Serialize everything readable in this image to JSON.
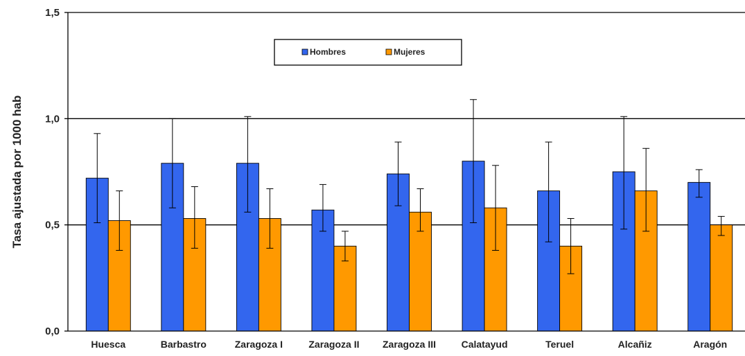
{
  "chart_data": {
    "type": "bar",
    "title": "",
    "xlabel": "",
    "ylabel": "Tasa ajustada por 1000 hab",
    "ylim": [
      0,
      1.5
    ],
    "yticks": [
      "0,0",
      "0,5",
      "1,0",
      "1,5"
    ],
    "categories": [
      "Huesca",
      "Barbastro",
      "Zaragoza I",
      "Zaragoza II",
      "Zaragoza III",
      "Calatayud",
      "Teruel",
      "Alcañiz",
      "Aragón"
    ],
    "series": [
      {
        "name": "Hombres",
        "color": "#3366ee",
        "values": [
          0.72,
          0.79,
          0.79,
          0.57,
          0.74,
          0.8,
          0.66,
          0.75,
          0.7
        ],
        "err_low": [
          0.51,
          0.58,
          0.56,
          0.47,
          0.59,
          0.51,
          0.42,
          0.48,
          0.63
        ],
        "err_high": [
          0.93,
          1.0,
          1.01,
          0.69,
          0.89,
          1.09,
          0.89,
          1.01,
          0.76
        ]
      },
      {
        "name": "Mujeres",
        "color": "#ff9900",
        "values": [
          0.52,
          0.53,
          0.53,
          0.4,
          0.56,
          0.58,
          0.4,
          0.66,
          0.5
        ],
        "err_low": [
          0.38,
          0.39,
          0.39,
          0.33,
          0.47,
          0.38,
          0.27,
          0.47,
          0.45
        ],
        "err_high": [
          0.66,
          0.68,
          0.67,
          0.47,
          0.67,
          0.78,
          0.53,
          0.86,
          0.54
        ]
      }
    ],
    "grid": "major horizontal lines at 0,5 and 1,0",
    "legend_position": "top-center"
  }
}
